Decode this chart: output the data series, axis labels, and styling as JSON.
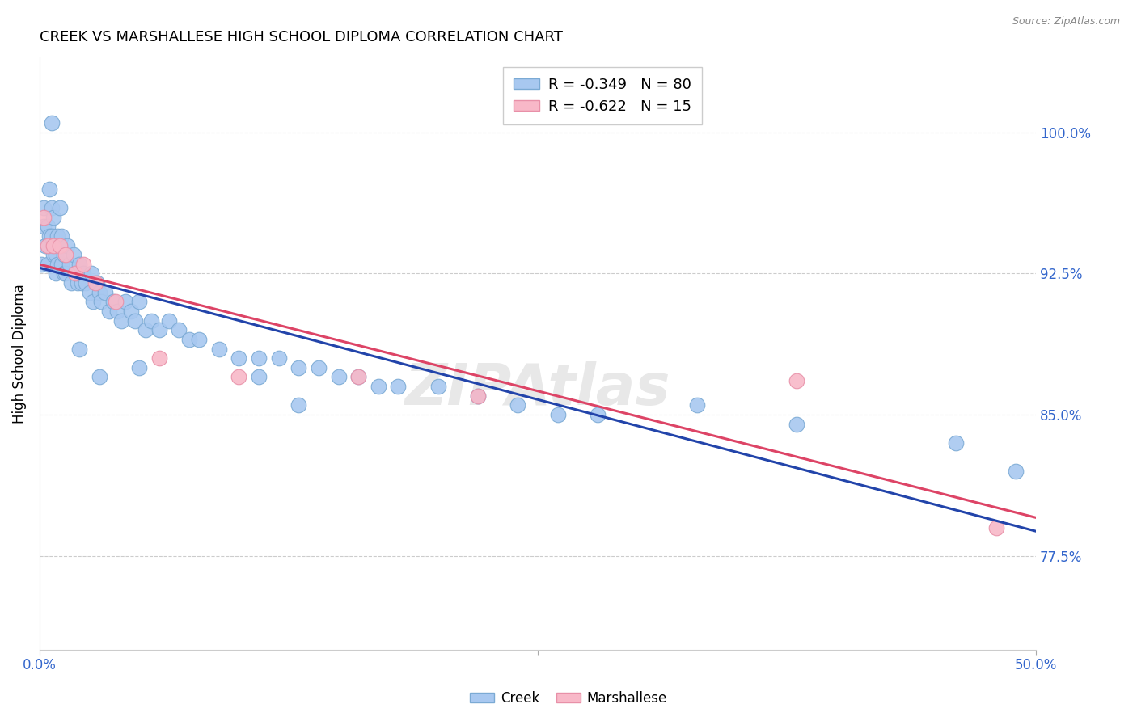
{
  "title": "CREEK VS MARSHALLESE HIGH SCHOOL DIPLOMA CORRELATION CHART",
  "source": "Source: ZipAtlas.com",
  "ylabel": "High School Diploma",
  "ytick_labels": [
    "100.0%",
    "92.5%",
    "85.0%",
    "77.5%"
  ],
  "ytick_values": [
    1.0,
    0.925,
    0.85,
    0.775
  ],
  "xmin": 0.0,
  "xmax": 0.5,
  "ymin": 0.725,
  "ymax": 1.04,
  "legend_r_creek": "R = -0.349",
  "legend_n_creek": "N = 80",
  "legend_r_marsh": "R = -0.622",
  "legend_n_marsh": "N = 15",
  "creek_color": "#A8C8F0",
  "creek_edge": "#7BAAD4",
  "marsh_color": "#F8B8C8",
  "marsh_edge": "#E890A8",
  "creek_line_color": "#2244AA",
  "marsh_line_color": "#DD4466",
  "creek_x": [
    0.001,
    0.002,
    0.002,
    0.003,
    0.004,
    0.004,
    0.005,
    0.005,
    0.006,
    0.006,
    0.007,
    0.007,
    0.008,
    0.008,
    0.009,
    0.009,
    0.01,
    0.01,
    0.011,
    0.011,
    0.012,
    0.012,
    0.013,
    0.014,
    0.015,
    0.016,
    0.017,
    0.018,
    0.019,
    0.02,
    0.021,
    0.022,
    0.023,
    0.025,
    0.026,
    0.027,
    0.029,
    0.03,
    0.031,
    0.033,
    0.035,
    0.037,
    0.039,
    0.041,
    0.043,
    0.046,
    0.048,
    0.05,
    0.053,
    0.056,
    0.06,
    0.065,
    0.07,
    0.075,
    0.08,
    0.09,
    0.1,
    0.11,
    0.12,
    0.13,
    0.14,
    0.15,
    0.16,
    0.17,
    0.18,
    0.2,
    0.22,
    0.24,
    0.26,
    0.28,
    0.006,
    0.02,
    0.03,
    0.05,
    0.11,
    0.13,
    0.33,
    0.38,
    0.46,
    0.49
  ],
  "creek_y": [
    0.93,
    0.96,
    0.95,
    0.94,
    0.95,
    0.93,
    0.97,
    0.945,
    0.96,
    0.945,
    0.935,
    0.955,
    0.935,
    0.925,
    0.945,
    0.93,
    0.96,
    0.94,
    0.945,
    0.93,
    0.935,
    0.925,
    0.925,
    0.94,
    0.93,
    0.92,
    0.935,
    0.925,
    0.92,
    0.93,
    0.92,
    0.925,
    0.92,
    0.915,
    0.925,
    0.91,
    0.92,
    0.915,
    0.91,
    0.915,
    0.905,
    0.91,
    0.905,
    0.9,
    0.91,
    0.905,
    0.9,
    0.91,
    0.895,
    0.9,
    0.895,
    0.9,
    0.895,
    0.89,
    0.89,
    0.885,
    0.88,
    0.88,
    0.88,
    0.875,
    0.875,
    0.87,
    0.87,
    0.865,
    0.865,
    0.865,
    0.86,
    0.855,
    0.85,
    0.85,
    1.005,
    0.885,
    0.87,
    0.875,
    0.87,
    0.855,
    0.855,
    0.845,
    0.835,
    0.82
  ],
  "marsh_x": [
    0.002,
    0.004,
    0.007,
    0.01,
    0.013,
    0.018,
    0.022,
    0.028,
    0.038,
    0.06,
    0.1,
    0.16,
    0.22,
    0.38,
    0.48
  ],
  "marsh_y": [
    0.955,
    0.94,
    0.94,
    0.94,
    0.935,
    0.925,
    0.93,
    0.92,
    0.91,
    0.88,
    0.87,
    0.87,
    0.86,
    0.868,
    0.79
  ]
}
